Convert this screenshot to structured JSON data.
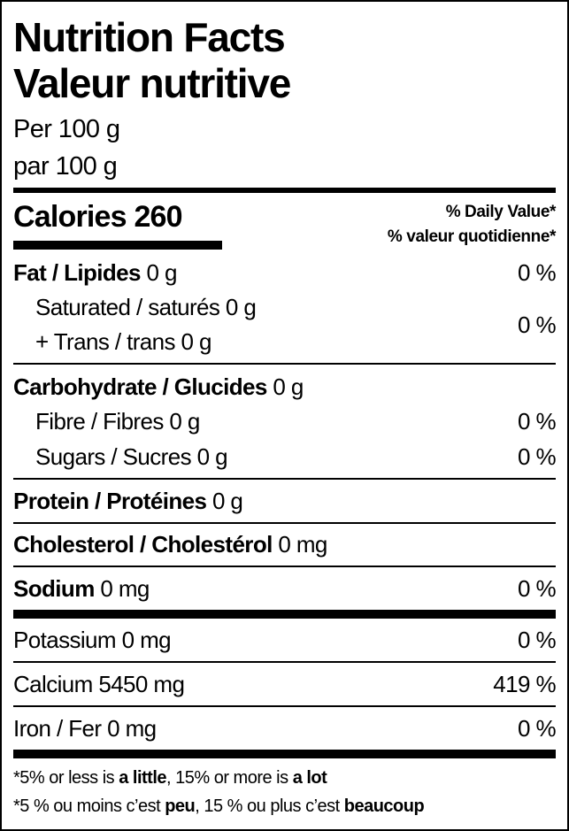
{
  "title_en": "Nutrition Facts",
  "title_fr": "Valeur nutritive",
  "serving_en": "Per 100 g",
  "serving_fr": "par 100 g",
  "calories_label": "Calories",
  "calories_value": "260",
  "dv_en": "% Daily Value*",
  "dv_fr": "% valeur quotidienne*",
  "nutrients": {
    "fat": {
      "label": "Fat / Lipides",
      "amount": "0 g",
      "dv": "0 %"
    },
    "saturated": {
      "label": "Saturated / saturés",
      "amount": "0 g"
    },
    "trans": {
      "label": "+ Trans / trans",
      "amount": "0 g"
    },
    "sat_trans_dv": "0 %",
    "carb": {
      "label": "Carbohydrate / Glucides",
      "amount": "0 g"
    },
    "fibre": {
      "label": "Fibre / Fibres",
      "amount": "0 g",
      "dv": "0 %"
    },
    "sugars": {
      "label": "Sugars / Sucres",
      "amount": "0 g",
      "dv": "0 %"
    },
    "protein": {
      "label": "Protein / Protéines",
      "amount": "0 g"
    },
    "cholesterol": {
      "label": "Cholesterol / Cholestérol",
      "amount": "0 mg"
    },
    "sodium": {
      "label": "Sodium",
      "amount": "0 mg",
      "dv": "0 %"
    },
    "potassium": {
      "label": "Potassium 0 mg",
      "dv": "0 %"
    },
    "calcium": {
      "label": "Calcium 5450 mg",
      "dv": "419 %"
    },
    "iron": {
      "label": "Iron / Fer 0 mg",
      "dv": "0 %"
    }
  },
  "footnote_en": {
    "a": "*5% or less is ",
    "b": "a little",
    "c": ", 15% or more is ",
    "d": "a lot"
  },
  "footnote_fr": {
    "a": "*5 % ou moins c’est ",
    "b": "peu",
    "c": ", 15 % ou plus c’est ",
    "d": "beaucoup"
  }
}
